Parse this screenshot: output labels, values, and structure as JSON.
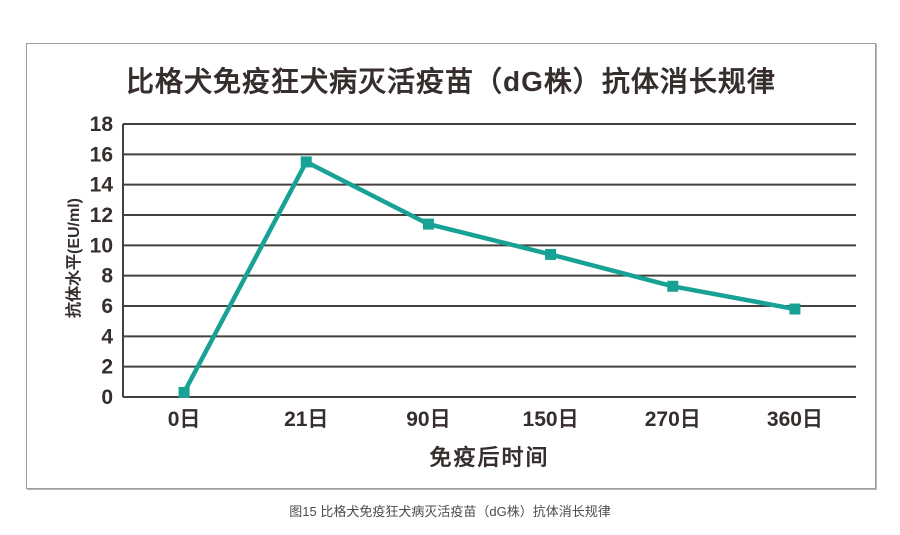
{
  "figure": {
    "title": "比格犬免疫狂犬病灭活疫苗（dG株）抗体消长规律",
    "caption": "图15 比格犬免疫狂犬病灭活疫苗（dG株）抗体消长规律"
  },
  "chart_data": {
    "type": "line",
    "title": "比格犬免疫狂犬病灭活疫苗（dG株）抗体消长规律",
    "categories": [
      "0日",
      "21日",
      "90日",
      "150日",
      "270日",
      "360日"
    ],
    "series": [
      {
        "name": "抗体水平",
        "values": [
          0.3,
          15.5,
          11.4,
          9.4,
          7.3,
          5.8
        ]
      }
    ],
    "xlabel": "免疫后时间",
    "ylabel": "抗体水平(EU/ml)",
    "ylim": [
      0,
      18
    ],
    "ytick_step": 2,
    "grid": true,
    "legend_position": "none",
    "marker": "square"
  },
  "colors": {
    "line": "#18a295",
    "marker": "#18a295",
    "grid": "#46403d",
    "axis": "#46403d",
    "text": "#352e2c",
    "box_border": "#9e9e9e",
    "caption_text": "#4e4a49",
    "background": "#ffffff"
  }
}
